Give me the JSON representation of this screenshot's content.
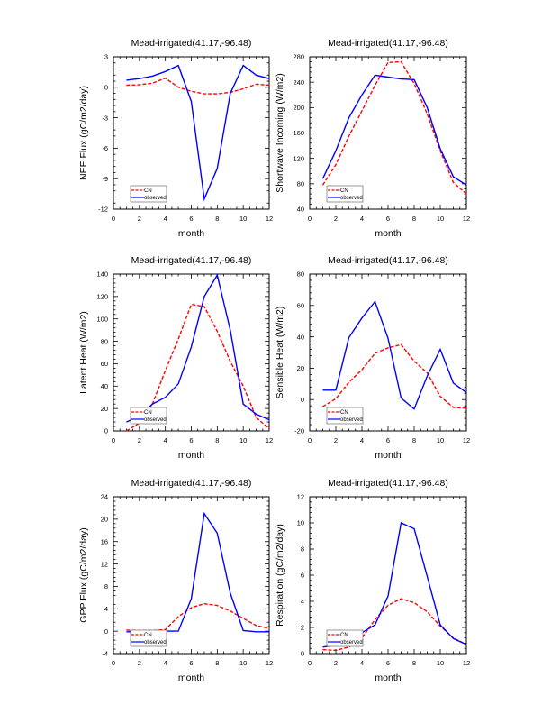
{
  "chart_data": [
    {
      "type": "line",
      "title": "Mead-irrigated(41.17,-96.48)",
      "xlabel": "month",
      "ylabel": "NEE Flux (gC/m2/day)",
      "xlim": [
        0,
        12
      ],
      "ylim": [
        -12,
        3
      ],
      "xticks": [
        0,
        2,
        4,
        6,
        8,
        10,
        12
      ],
      "yticks": [
        -12,
        -9,
        -6,
        -3,
        0,
        3
      ],
      "grid": false,
      "legend_position": "bottom-left",
      "x": [
        1,
        2,
        3,
        4,
        5,
        6,
        7,
        8,
        9,
        10,
        11,
        12
      ],
      "series": [
        {
          "name": "CN",
          "color": "#ff0000",
          "style": "dashed",
          "values": [
            0.2,
            0.25,
            0.4,
            0.9,
            0.0,
            -0.4,
            -0.65,
            -0.65,
            -0.5,
            -0.15,
            0.3,
            0.2
          ]
        },
        {
          "name": "observed",
          "color": "#0000ff",
          "style": "solid",
          "values": [
            0.7,
            0.85,
            1.1,
            1.55,
            2.15,
            -1.4,
            -11.0,
            -8.0,
            -0.6,
            2.15,
            1.2,
            0.85
          ]
        }
      ]
    },
    {
      "type": "line",
      "title": "Mead-irrigated(41.17,-96.48)",
      "xlabel": "month",
      "ylabel": "Shortwave Incoming (W/m2)",
      "xlim": [
        0,
        12
      ],
      "ylim": [
        40,
        280
      ],
      "xticks": [
        0,
        2,
        4,
        6,
        8,
        10,
        12
      ],
      "yticks": [
        40,
        80,
        120,
        160,
        200,
        240,
        280
      ],
      "grid": false,
      "legend_position": "bottom-left",
      "x": [
        1,
        2,
        3,
        4,
        5,
        6,
        7,
        8,
        9,
        10,
        11,
        12
      ],
      "series": [
        {
          "name": "CN",
          "color": "#ff0000",
          "style": "dashed",
          "values": [
            78,
            110,
            155,
            195,
            235,
            271,
            272,
            238,
            190,
            132,
            82,
            64
          ]
        },
        {
          "name": "observed",
          "color": "#0000ff",
          "style": "solid",
          "values": [
            88,
            132,
            184,
            220,
            251,
            248,
            245,
            244,
            200,
            135,
            91,
            78
          ]
        }
      ]
    },
    {
      "type": "line",
      "title": "Mead-irrigated(41.17,-96.48)",
      "xlabel": "month",
      "ylabel": "Latent Heat (W/m2)",
      "xlim": [
        0,
        12
      ],
      "ylim": [
        0,
        140
      ],
      "xticks": [
        0,
        2,
        4,
        6,
        8,
        10,
        12
      ],
      "yticks": [
        0,
        20,
        40,
        60,
        80,
        100,
        120,
        140
      ],
      "grid": false,
      "legend_position": "bottom-left",
      "x": [
        1,
        2,
        3,
        4,
        5,
        6,
        7,
        8,
        9,
        10,
        11,
        12
      ],
      "series": [
        {
          "name": "CN",
          "color": "#ff0000",
          "style": "dashed",
          "values": [
            0,
            7,
            24,
            54,
            82,
            113,
            111,
            89,
            62,
            40,
            12,
            2
          ]
        },
        {
          "name": "observed",
          "color": "#0000ff",
          "style": "solid",
          "values": [
            8,
            13,
            24,
            30,
            42,
            75,
            120,
            139,
            90,
            24,
            15,
            10
          ]
        }
      ]
    },
    {
      "type": "line",
      "title": "Mead-irrigated(41.17,-96.48)",
      "xlabel": "month",
      "ylabel": "Sensible Heat (W/m2)",
      "xlim": [
        0,
        12
      ],
      "ylim": [
        -20,
        80
      ],
      "xticks": [
        0,
        2,
        4,
        6,
        8,
        10,
        12
      ],
      "yticks": [
        -20,
        0,
        20,
        40,
        60,
        80
      ],
      "grid": false,
      "legend_position": "bottom-left",
      "x": [
        1,
        2,
        3,
        4,
        5,
        6,
        7,
        8,
        9,
        10,
        11,
        12
      ],
      "series": [
        {
          "name": "CN",
          "color": "#ff0000",
          "style": "dashed",
          "values": [
            -4.5,
            0.5,
            11,
            19,
            29.5,
            33,
            35,
            24.5,
            17,
            2,
            -5,
            -5.5
          ]
        },
        {
          "name": "observed",
          "color": "#0000ff",
          "style": "solid",
          "values": [
            6,
            6,
            39.5,
            52,
            62.5,
            39,
            1,
            -6,
            15,
            32,
            10.5,
            4.5
          ]
        }
      ]
    },
    {
      "type": "line",
      "title": "Mead-irrigated(41.17,-96.48)",
      "xlabel": "month",
      "ylabel": "GPP Flux (gC/m2/day)",
      "xlim": [
        0,
        12
      ],
      "ylim": [
        -4,
        24
      ],
      "xticks": [
        0,
        2,
        4,
        6,
        8,
        10,
        12
      ],
      "yticks": [
        -4,
        0,
        4,
        8,
        12,
        16,
        20,
        24
      ],
      "grid": false,
      "legend_position": "bottom-left",
      "x": [
        1,
        2,
        3,
        4,
        5,
        6,
        7,
        8,
        9,
        10,
        11,
        12
      ],
      "series": [
        {
          "name": "CN",
          "color": "#ff0000",
          "style": "dashed",
          "values": [
            0.2,
            0.1,
            0.1,
            0.3,
            2.6,
            4.2,
            4.9,
            4.6,
            3.6,
            2.3,
            1.0,
            0.5
          ]
        },
        {
          "name": "observed",
          "color": "#0000ff",
          "style": "solid",
          "values": [
            -0.1,
            -0.1,
            -0.1,
            0.0,
            0.0,
            5.8,
            21.0,
            17.5,
            6.8,
            0.1,
            -0.1,
            -0.1
          ]
        }
      ]
    },
    {
      "type": "line",
      "title": "Mead-irrigated(41.17,-96.48)",
      "xlabel": "month",
      "ylabel": "Respiration (gC/m2/day)",
      "xlim": [
        0,
        12
      ],
      "ylim": [
        0,
        12
      ],
      "xticks": [
        0,
        2,
        4,
        6,
        8,
        10,
        12
      ],
      "yticks": [
        0,
        2,
        4,
        6,
        8,
        10,
        12
      ],
      "grid": false,
      "legend_position": "bottom-left",
      "x": [
        1,
        2,
        3,
        4,
        5,
        6,
        7,
        8,
        9,
        10,
        11,
        12
      ],
      "series": [
        {
          "name": "CN",
          "color": "#ff0000",
          "style": "dashed",
          "values": [
            0.3,
            0.25,
            0.5,
            1.2,
            2.6,
            3.7,
            4.2,
            3.9,
            3.2,
            2.1,
            1.2,
            0.7
          ]
        },
        {
          "name": "observed",
          "color": "#0000ff",
          "style": "solid",
          "values": [
            0.5,
            0.65,
            0.9,
            1.6,
            2.2,
            4.4,
            10.0,
            9.55,
            5.9,
            2.2,
            1.15,
            0.7
          ]
        }
      ]
    }
  ]
}
